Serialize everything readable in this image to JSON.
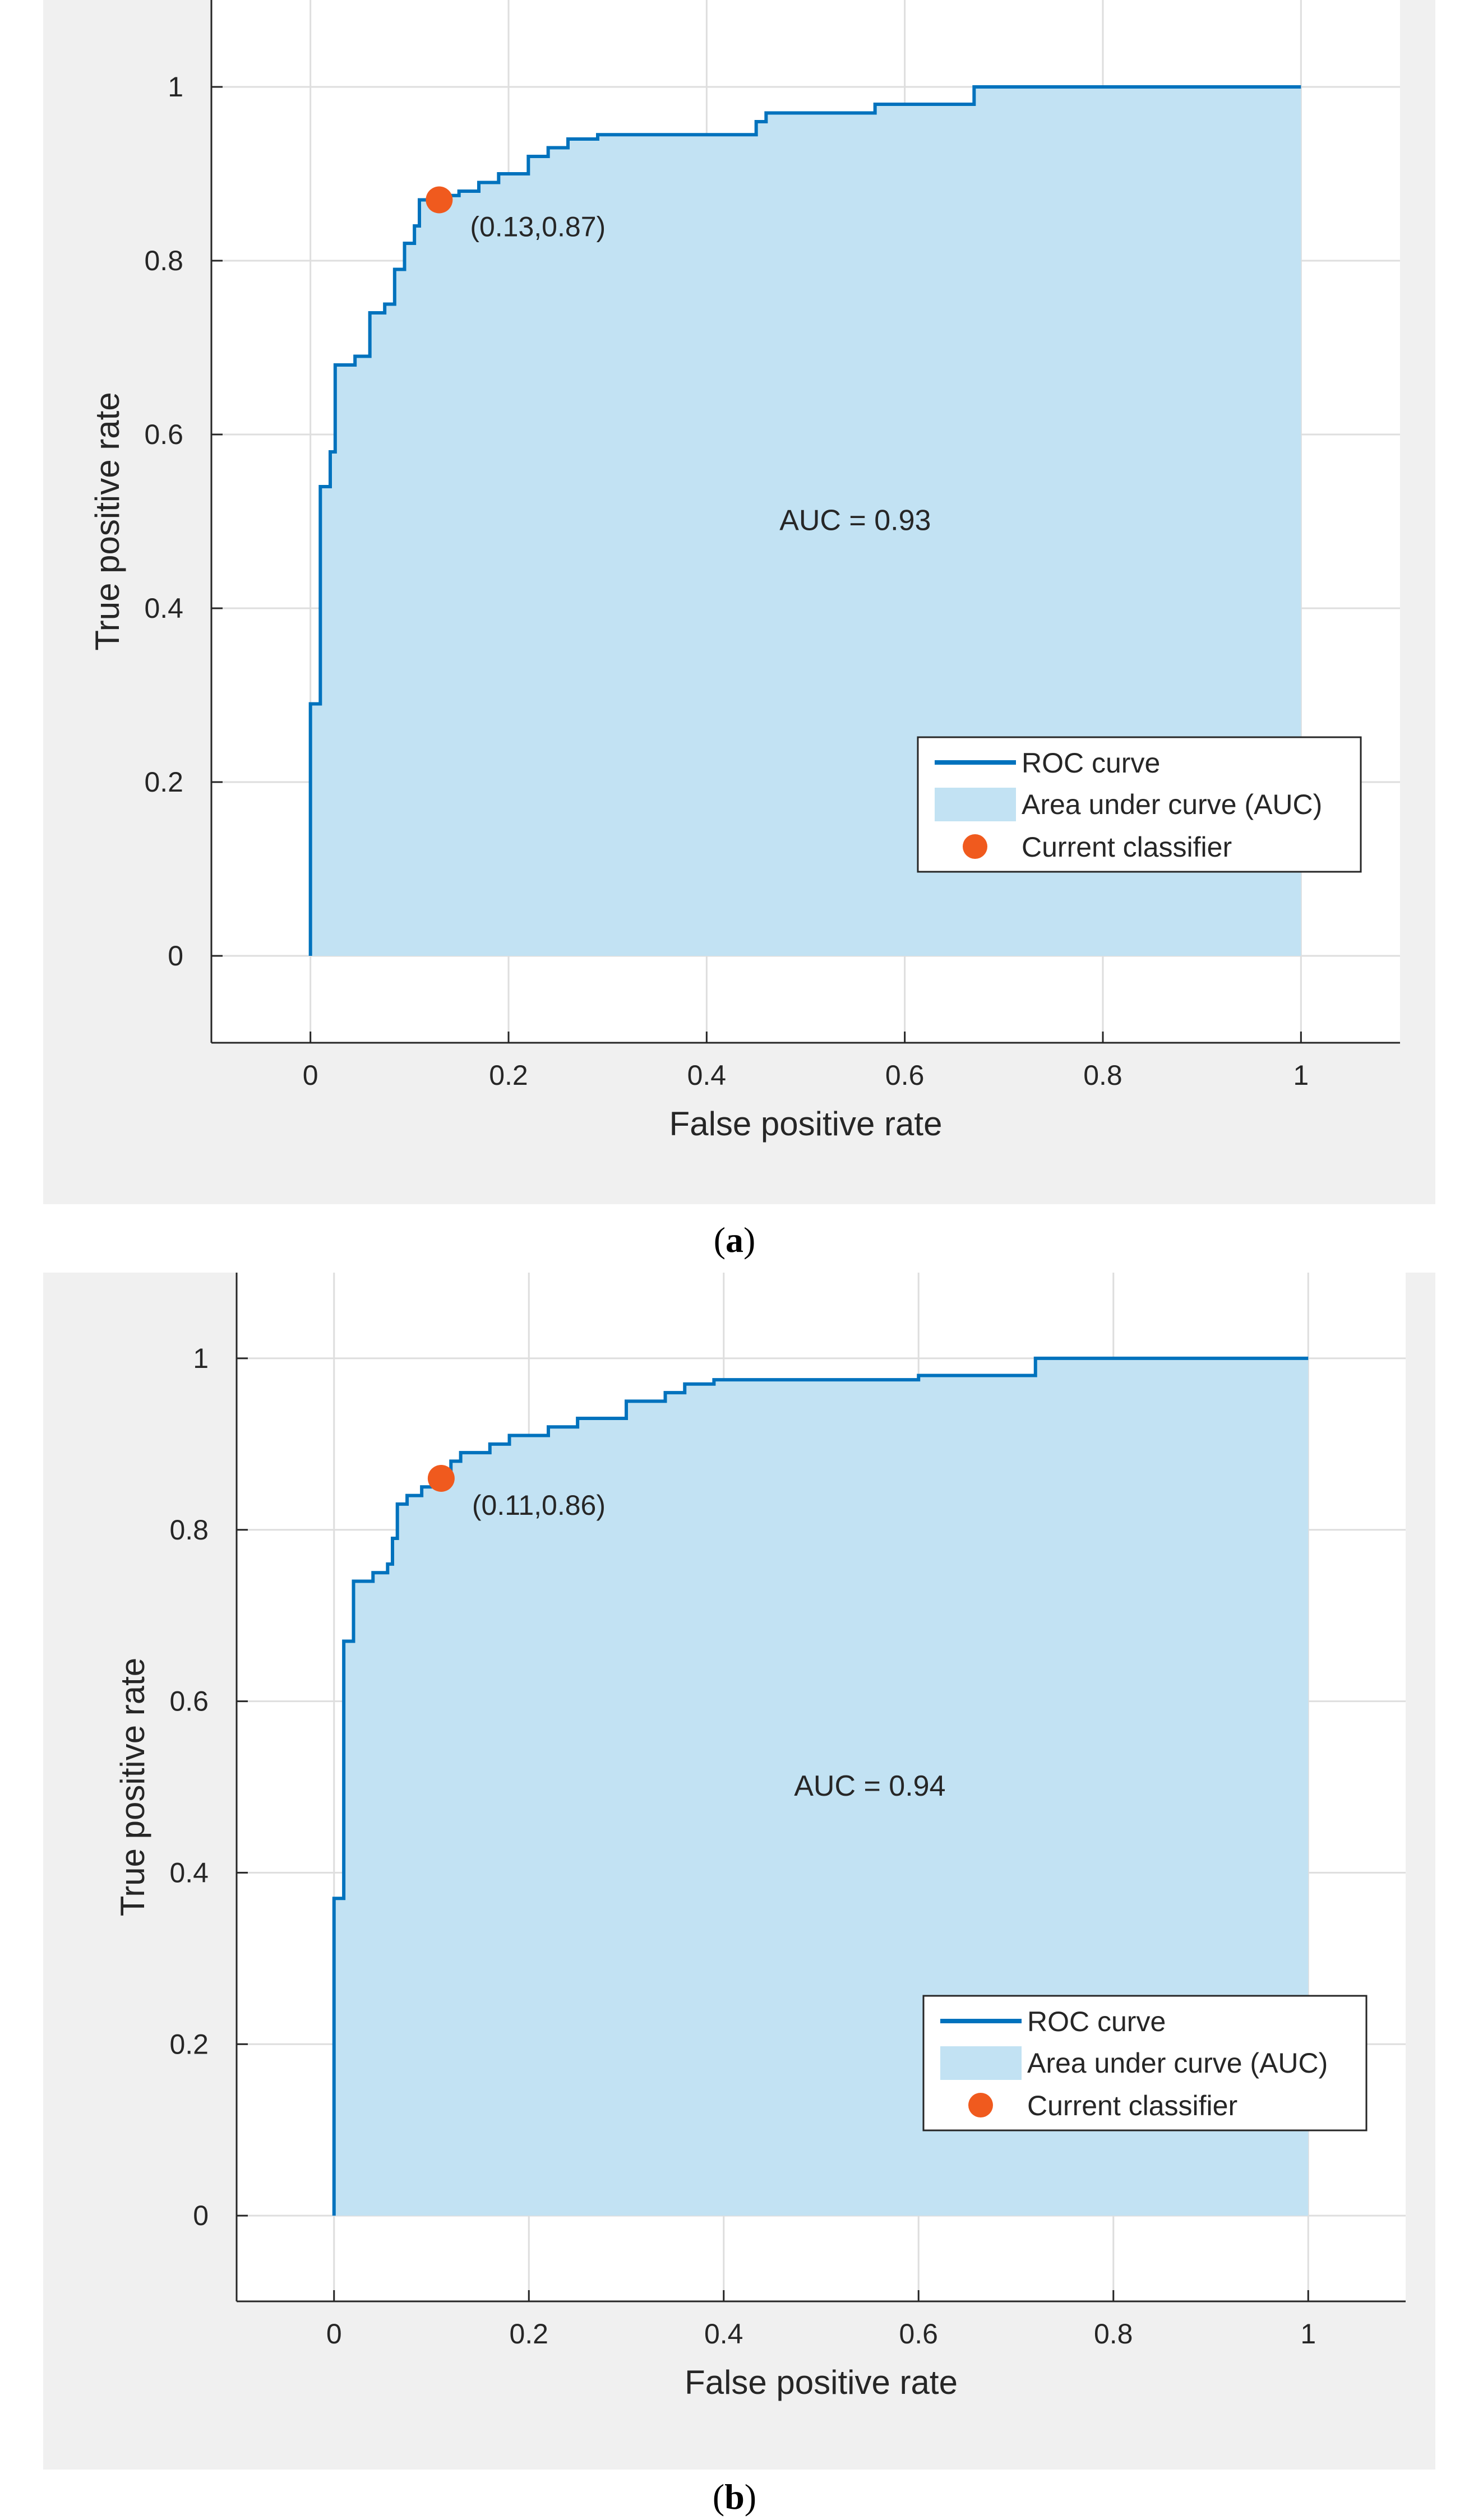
{
  "colors": {
    "figure_bg": "#f0f0f0",
    "axes_bg": "#ffffff",
    "grid": "#dedede",
    "axis": "#262626",
    "roc_line": "#0072bd",
    "auc_fill": "#c2e2f3",
    "classifier_marker": "#f05a1e"
  },
  "chart_data": [
    {
      "type": "line",
      "caption_letter": "a",
      "xlabel": "False positive rate",
      "ylabel": "True positive rate",
      "xlim": [
        -0.1,
        1.1
      ],
      "ylim": [
        -0.1,
        1.1
      ],
      "xticks": [
        0,
        0.2,
        0.4,
        0.6,
        0.8,
        1
      ],
      "yticks": [
        0,
        0.2,
        0.4,
        0.6,
        0.8,
        1
      ],
      "xtick_labels": [
        "0",
        "0.2",
        "0.4",
        "0.6",
        "0.8",
        "1"
      ],
      "ytick_labels": [
        "0",
        "0.2",
        "0.4",
        "0.6",
        "0.8",
        "1"
      ],
      "grid": true,
      "legend_position": "bottom-right",
      "legend": [
        "ROC curve",
        "Area under curve (AUC)",
        "Current classifier"
      ],
      "auc_label": "AUC = 0.93",
      "classifier_point": {
        "x": 0.13,
        "y": 0.87,
        "label": "(0.13,0.87)"
      },
      "roc_points": [
        [
          0,
          0
        ],
        [
          0,
          0.29
        ],
        [
          0.01,
          0.29
        ],
        [
          0.01,
          0.54
        ],
        [
          0.02,
          0.54
        ],
        [
          0.02,
          0.58
        ],
        [
          0.025,
          0.58
        ],
        [
          0.025,
          0.68
        ],
        [
          0.045,
          0.68
        ],
        [
          0.045,
          0.69
        ],
        [
          0.06,
          0.69
        ],
        [
          0.06,
          0.74
        ],
        [
          0.075,
          0.74
        ],
        [
          0.075,
          0.75
        ],
        [
          0.085,
          0.75
        ],
        [
          0.085,
          0.79
        ],
        [
          0.095,
          0.79
        ],
        [
          0.095,
          0.82
        ],
        [
          0.105,
          0.82
        ],
        [
          0.105,
          0.84
        ],
        [
          0.11,
          0.84
        ],
        [
          0.11,
          0.87
        ],
        [
          0.13,
          0.87
        ],
        [
          0.13,
          0.875
        ],
        [
          0.15,
          0.875
        ],
        [
          0.15,
          0.88
        ],
        [
          0.17,
          0.88
        ],
        [
          0.17,
          0.89
        ],
        [
          0.19,
          0.89
        ],
        [
          0.19,
          0.9
        ],
        [
          0.22,
          0.9
        ],
        [
          0.22,
          0.92
        ],
        [
          0.24,
          0.92
        ],
        [
          0.24,
          0.93
        ],
        [
          0.26,
          0.93
        ],
        [
          0.26,
          0.94
        ],
        [
          0.29,
          0.94
        ],
        [
          0.29,
          0.945
        ],
        [
          0.45,
          0.945
        ],
        [
          0.45,
          0.96
        ],
        [
          0.46,
          0.96
        ],
        [
          0.46,
          0.97
        ],
        [
          0.57,
          0.97
        ],
        [
          0.57,
          0.98
        ],
        [
          0.67,
          0.98
        ],
        [
          0.67,
          1
        ],
        [
          1,
          1
        ]
      ]
    },
    {
      "type": "line",
      "caption_letter": "b",
      "xlabel": "False positive rate",
      "ylabel": "True positive rate",
      "xlim": [
        -0.1,
        1.1
      ],
      "ylim": [
        -0.1,
        1.1
      ],
      "xticks": [
        0,
        0.2,
        0.4,
        0.6,
        0.8,
        1
      ],
      "yticks": [
        0,
        0.2,
        0.4,
        0.6,
        0.8,
        1
      ],
      "xtick_labels": [
        "0",
        "0.2",
        "0.4",
        "0.6",
        "0.8",
        "1"
      ],
      "ytick_labels": [
        "0",
        "0.2",
        "0.4",
        "0.6",
        "0.8",
        "1"
      ],
      "grid": true,
      "legend_position": "bottom-right",
      "legend": [
        "ROC curve",
        "Area under curve (AUC)",
        "Current classifier"
      ],
      "auc_label": "AUC = 0.94",
      "classifier_point": {
        "x": 0.11,
        "y": 0.86,
        "label": "(0.11,0.86)"
      },
      "roc_points": [
        [
          0,
          0
        ],
        [
          0,
          0.37
        ],
        [
          0.01,
          0.37
        ],
        [
          0.01,
          0.67
        ],
        [
          0.02,
          0.67
        ],
        [
          0.02,
          0.74
        ],
        [
          0.04,
          0.74
        ],
        [
          0.04,
          0.75
        ],
        [
          0.055,
          0.75
        ],
        [
          0.055,
          0.76
        ],
        [
          0.06,
          0.76
        ],
        [
          0.06,
          0.79
        ],
        [
          0.065,
          0.79
        ],
        [
          0.065,
          0.83
        ],
        [
          0.075,
          0.83
        ],
        [
          0.075,
          0.84
        ],
        [
          0.09,
          0.84
        ],
        [
          0.09,
          0.85
        ],
        [
          0.1,
          0.85
        ],
        [
          0.1,
          0.86
        ],
        [
          0.12,
          0.86
        ],
        [
          0.12,
          0.88
        ],
        [
          0.13,
          0.88
        ],
        [
          0.13,
          0.89
        ],
        [
          0.16,
          0.89
        ],
        [
          0.16,
          0.9
        ],
        [
          0.18,
          0.9
        ],
        [
          0.18,
          0.91
        ],
        [
          0.22,
          0.91
        ],
        [
          0.22,
          0.92
        ],
        [
          0.25,
          0.92
        ],
        [
          0.25,
          0.93
        ],
        [
          0.3,
          0.93
        ],
        [
          0.3,
          0.95
        ],
        [
          0.34,
          0.95
        ],
        [
          0.34,
          0.96
        ],
        [
          0.36,
          0.96
        ],
        [
          0.36,
          0.97
        ],
        [
          0.39,
          0.97
        ],
        [
          0.39,
          0.975
        ],
        [
          0.6,
          0.975
        ],
        [
          0.6,
          0.98
        ],
        [
          0.72,
          0.98
        ],
        [
          0.72,
          1
        ],
        [
          1,
          1
        ]
      ]
    }
  ]
}
